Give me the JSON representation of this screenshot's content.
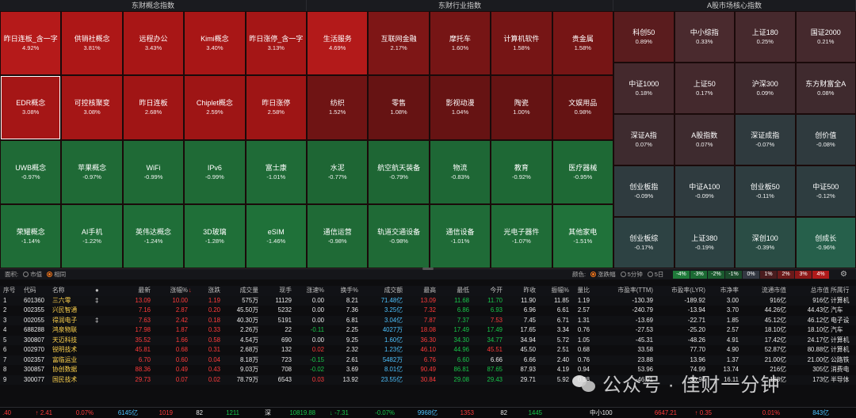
{
  "headers": {
    "concept": "东财概念指数",
    "industry": "东财行业指数",
    "core": "A股市场核心指数"
  },
  "concept_cells": [
    {
      "name": "昨日连板_含一字",
      "pct": "4.92%",
      "color": "#b51a1a"
    },
    {
      "name": "供销社概念",
      "pct": "3.81%",
      "color": "#ad1717"
    },
    {
      "name": "远程办公",
      "pct": "3.43%",
      "color": "#a81616"
    },
    {
      "name": "Kimi概念",
      "pct": "3.40%",
      "color": "#a81616"
    },
    {
      "name": "昨日涨停_含一字",
      "pct": "3.13%",
      "color": "#a51616"
    },
    {
      "name": "EDR概念",
      "pct": "3.08%",
      "color": "#a51616"
    },
    {
      "name": "可控核聚变",
      "pct": "3.08%",
      "color": "#a51616"
    },
    {
      "name": "昨日连板",
      "pct": "2.68%",
      "color": "#a01515"
    },
    {
      "name": "Chiplet概念",
      "pct": "2.59%",
      "color": "#9e1515"
    },
    {
      "name": "昨日涨停",
      "pct": "2.58%",
      "color": "#9e1515"
    },
    {
      "name": "UWB概念",
      "pct": "-0.97%",
      "color": "#1f6a36"
    },
    {
      "name": "苹果概念",
      "pct": "-0.97%",
      "color": "#1f6a36"
    },
    {
      "name": "WiFi",
      "pct": "-0.99%",
      "color": "#1f6a36"
    },
    {
      "name": "IPv6",
      "pct": "-0.99%",
      "color": "#1f6a36"
    },
    {
      "name": "富士康",
      "pct": "-1.01%",
      "color": "#1f6b37"
    },
    {
      "name": "荣耀概念",
      "pct": "-1.14%",
      "color": "#1f6d37"
    },
    {
      "name": "AI手机",
      "pct": "-1.22%",
      "color": "#1f6e38"
    },
    {
      "name": "英伟达概念",
      "pct": "-1.24%",
      "color": "#1f6e38"
    },
    {
      "name": "3D玻璃",
      "pct": "-1.28%",
      "color": "#1f6f38"
    },
    {
      "name": "eSIM",
      "pct": "-1.46%",
      "color": "#1f7139"
    }
  ],
  "industry_cells": [
    {
      "name": "生活服务",
      "pct": "4.69%",
      "color": "#b31a1a"
    },
    {
      "name": "互联网金融",
      "pct": "2.17%",
      "color": "#7e1616"
    },
    {
      "name": "摩托车",
      "pct": "1.60%",
      "color": "#761515"
    },
    {
      "name": "计算机软件",
      "pct": "1.58%",
      "color": "#761515"
    },
    {
      "name": "贵金属",
      "pct": "1.58%",
      "color": "#761515"
    },
    {
      "name": "纺织",
      "pct": "1.52%",
      "color": "#6f1414"
    },
    {
      "name": "零售",
      "pct": "1.08%",
      "color": "#661313"
    },
    {
      "name": "影视动漫",
      "pct": "1.04%",
      "color": "#661313"
    },
    {
      "name": "陶瓷",
      "pct": "1.00%",
      "color": "#651313"
    },
    {
      "name": "文娱用品",
      "pct": "0.98%",
      "color": "#651313"
    },
    {
      "name": "水泥",
      "pct": "-0.77%",
      "color": "#1e6634"
    },
    {
      "name": "航空航天装备",
      "pct": "-0.79%",
      "color": "#1e6634"
    },
    {
      "name": "物流",
      "pct": "-0.83%",
      "color": "#1e6735"
    },
    {
      "name": "教育",
      "pct": "-0.92%",
      "color": "#1e6835"
    },
    {
      "name": "医疗器械",
      "pct": "-0.95%",
      "color": "#1e6935"
    },
    {
      "name": "通信运营",
      "pct": "-0.98%",
      "color": "#1f6a36"
    },
    {
      "name": "轨道交通设备",
      "pct": "-0.98%",
      "color": "#1f6a36"
    },
    {
      "name": "通信设备",
      "pct": "-1.01%",
      "color": "#1f6b37"
    },
    {
      "name": "光电子器件",
      "pct": "-1.07%",
      "color": "#1f6c37"
    },
    {
      "name": "其他家电",
      "pct": "-1.51%",
      "color": "#20723a"
    }
  ],
  "core_cells": [
    {
      "name": "科创50",
      "pct": "0.89%",
      "color": "#5a1c1e"
    },
    {
      "name": "中小综指",
      "pct": "0.33%",
      "color": "#4a2a2e"
    },
    {
      "name": "上证180",
      "pct": "0.25%",
      "color": "#46292d"
    },
    {
      "name": "国证2000",
      "pct": "0.21%",
      "color": "#45292d"
    },
    {
      "name": "中证1000",
      "pct": "0.18%",
      "color": "#44292d"
    },
    {
      "name": "上证50",
      "pct": "0.17%",
      "color": "#44292d"
    },
    {
      "name": "沪深300",
      "pct": "0.09%",
      "color": "#3f2a2e"
    },
    {
      "name": "东方财富全A",
      "pct": "0.08%",
      "color": "#3f2a2e"
    },
    {
      "name": "深证A指",
      "pct": "0.07%",
      "color": "#3e2b2f"
    },
    {
      "name": "A股指数",
      "pct": "0.07%",
      "color": "#3e2b2f"
    },
    {
      "name": "深证成指",
      "pct": "-0.07%",
      "color": "#2f3a3e"
    },
    {
      "name": "创价值",
      "pct": "-0.08%",
      "color": "#2f3a3e"
    },
    {
      "name": "创业板指",
      "pct": "-0.09%",
      "color": "#2f3b3f"
    },
    {
      "name": "中证A100",
      "pct": "-0.09%",
      "color": "#2f3b3f"
    },
    {
      "name": "创业板50",
      "pct": "-0.11%",
      "color": "#2e3d40"
    },
    {
      "name": "中证500",
      "pct": "-0.12%",
      "color": "#2e3d40"
    },
    {
      "name": "创业板综",
      "pct": "-0.17%",
      "color": "#2d4243"
    },
    {
      "name": "上证380",
      "pct": "-0.19%",
      "color": "#2d4243"
    },
    {
      "name": "深创100",
      "pct": "-0.39%",
      "color": "#2a4d45"
    },
    {
      "name": "创成长",
      "pct": "-0.96%",
      "color": "#26604b"
    }
  ],
  "legend": {
    "area_label": "面积:",
    "opt_mcap": "市值",
    "opt_same": "相同",
    "color_label": "颜色:",
    "opt_change": "涨跌幅",
    "opt_5min": "5分钟",
    "opt_5day": "5日",
    "scale": [
      {
        "t": "-4%",
        "c": "#1f7a3a"
      },
      {
        "t": "-3%",
        "c": "#1b6a33"
      },
      {
        "t": "-2%",
        "c": "#1a5a2e"
      },
      {
        "t": "-1%",
        "c": "#1b4a2b"
      },
      {
        "t": "0%",
        "c": "#333842"
      },
      {
        "t": "1%",
        "c": "#4a1c1e"
      },
      {
        "t": "2%",
        "c": "#6a1a1a"
      },
      {
        "t": "3%",
        "c": "#8c1818"
      },
      {
        "t": "4%",
        "c": "#b01a1a"
      }
    ]
  },
  "table_header": [
    "序号",
    "代码",
    "名称",
    "●",
    "最新",
    "涨幅%",
    "涨跌",
    "成交量",
    "现手",
    "涨速%",
    "换手%",
    "成交额",
    "最高",
    "最低",
    "今开",
    "昨收",
    "振幅%",
    "量比",
    "市盈率(TTM)",
    "市盈率(LYR)",
    "市净率",
    "流通市值",
    "总市值",
    "所属行"
  ],
  "sort_arrow": "↓",
  "rows": [
    {
      "n": "1",
      "code": "601360",
      "name": "三六零",
      "flag": "‡",
      "last": "13.09",
      "chg": "10.00",
      "diff": "1.19",
      "vol": "575万",
      "hand": "11129",
      "spd": "0.00",
      "turn": "8.21",
      "amt": "71.48亿",
      "hi": "13.09",
      "lo": "11.68",
      "open": "11.70",
      "prev": "11.90",
      "amp": "11.85",
      "vr": "1.19",
      "pe_ttm": "-130.39",
      "pe_lyr": "-189.92",
      "pb": "3.00",
      "fmv": "916亿",
      "tmv": "916亿",
      "ind": "计算机"
    },
    {
      "n": "2",
      "code": "002355",
      "name": "兴民智通",
      "flag": "",
      "last": "7.16",
      "chg": "2.87",
      "diff": "0.20",
      "vol": "45.50万",
      "hand": "5232",
      "spd": "0.00",
      "turn": "7.36",
      "amt": "3.25亿",
      "hi": "7.32",
      "lo": "6.86",
      "open": "6.93",
      "prev": "6.96",
      "amp": "6.61",
      "vr": "2.57",
      "pe_ttm": "-240.79",
      "pe_lyr": "-13.94",
      "pb": "3.70",
      "fmv": "44.26亿",
      "tmv": "44.43亿",
      "ind": "汽车"
    },
    {
      "n": "3",
      "code": "002055",
      "name": "得润电子",
      "flag": "‡",
      "last": "7.63",
      "chg": "2.42",
      "diff": "0.18",
      "vol": "40.30万",
      "hand": "5191",
      "spd": "0.00",
      "turn": "6.81",
      "amt": "3.04亿",
      "hi": "7.87",
      "lo": "7.37",
      "open": "7.53",
      "prev": "7.45",
      "amp": "6.71",
      "vr": "1.31",
      "pe_ttm": "-13.69",
      "pe_lyr": "-22.71",
      "pb": "1.85",
      "fmv": "45.12亿",
      "tmv": "46.12亿",
      "ind": "电子设"
    },
    {
      "n": "4",
      "code": "688288",
      "name": "鸿泉物联",
      "flag": "",
      "last": "17.98",
      "chg": "1.87",
      "diff": "0.33",
      "vol": "2.26万",
      "hand": "22",
      "spd": "-0.11",
      "turn": "2.25",
      "amt": "4027万",
      "hi": "18.08",
      "lo": "17.49",
      "open": "17.49",
      "prev": "17.65",
      "amp": "3.34",
      "vr": "0.76",
      "pe_ttm": "-27.53",
      "pe_lyr": "-25.20",
      "pb": "2.57",
      "fmv": "18.10亿",
      "tmv": "18.10亿",
      "ind": "汽车"
    },
    {
      "n": "5",
      "code": "300807",
      "name": "天迈科技",
      "flag": "",
      "last": "35.52",
      "chg": "1.66",
      "diff": "0.58",
      "vol": "4.54万",
      "hand": "690",
      "spd": "0.00",
      "turn": "9.25",
      "amt": "1.60亿",
      "hi": "36.30",
      "lo": "34.30",
      "open": "34.77",
      "prev": "34.94",
      "amp": "5.72",
      "vr": "1.05",
      "pe_ttm": "-45.31",
      "pe_lyr": "-48.26",
      "pb": "4.91",
      "fmv": "17.42亿",
      "tmv": "24.17亿",
      "ind": "计算机"
    },
    {
      "n": "6",
      "code": "002970",
      "name": "锐明技术",
      "flag": "",
      "last": "45.81",
      "chg": "0.68",
      "diff": "0.31",
      "vol": "2.68万",
      "hand": "132",
      "spd": "0.02",
      "turn": "2.32",
      "amt": "1.23亿",
      "hi": "46.10",
      "lo": "44.96",
      "open": "45.51",
      "prev": "45.50",
      "amp": "2.51",
      "vr": "0.68",
      "pe_ttm": "33.58",
      "pe_lyr": "77.70",
      "pb": "4.90",
      "fmv": "52.87亿",
      "tmv": "80.88亿",
      "ind": "计算机"
    },
    {
      "n": "7",
      "code": "002357",
      "name": "富临运业",
      "flag": "",
      "last": "6.70",
      "chg": "0.60",
      "diff": "0.04",
      "vol": "8.18万",
      "hand": "723",
      "spd": "-0.15",
      "turn": "2.61",
      "amt": "5482万",
      "hi": "6.76",
      "lo": "6.60",
      "open": "6.66",
      "prev": "6.66",
      "amp": "2.40",
      "vr": "0.76",
      "pe_ttm": "23.88",
      "pe_lyr": "13.96",
      "pb": "1.37",
      "fmv": "21.00亿",
      "tmv": "21.00亿",
      "ind": "公路铁"
    },
    {
      "n": "8",
      "code": "300857",
      "name": "协创数据",
      "flag": "",
      "last": "88.36",
      "chg": "0.49",
      "diff": "0.43",
      "vol": "9.03万",
      "hand": "708",
      "spd": "-0.02",
      "turn": "3.69",
      "amt": "8.01亿",
      "hi": "90.49",
      "lo": "86.81",
      "open": "87.65",
      "prev": "87.93",
      "amp": "4.19",
      "vr": "0.94",
      "pe_ttm": "53.96",
      "pe_lyr": "74.99",
      "pb": "13.74",
      "fmv": "216亿",
      "tmv": "305亿",
      "ind": "消费电"
    },
    {
      "n": "9",
      "code": "300077",
      "name": "国民技术",
      "flag": "",
      "last": "29.73",
      "chg": "0.07",
      "diff": "0.02",
      "vol": "78.79万",
      "hand": "6543",
      "spd": "0.03",
      "turn": "13.92",
      "amt": "23.55亿",
      "hi": "30.84",
      "lo": "29.08",
      "open": "29.43",
      "prev": "29.71",
      "amp": "5.92",
      "vr": "0.98",
      "pe_ttm": "-46.91",
      "pe_lyr": "-30.94",
      "pb": "16.11",
      "fmv": "168亿",
      "tmv": "173亿",
      "ind": "半导体"
    }
  ],
  "status": {
    "a1": ".40",
    "a2": "↑ 2.41",
    "a3": "0.07%",
    "a4": "6145亿",
    "a5": "1019",
    "a6": "82",
    "a7": "1211",
    "b0": "深",
    "b1": "10819.88",
    "b2": "↓ -7.31",
    "b3": "-0.07%",
    "b4": "9968亿",
    "b5": "1353",
    "b6": "82",
    "b7": "1445",
    "c0": "中小100",
    "c1": "6647.21",
    "c2": "↑ 0.35",
    "c3": "0.01%",
    "c4": "843亿"
  },
  "watermark": "公众号 · 佳财一分钟"
}
